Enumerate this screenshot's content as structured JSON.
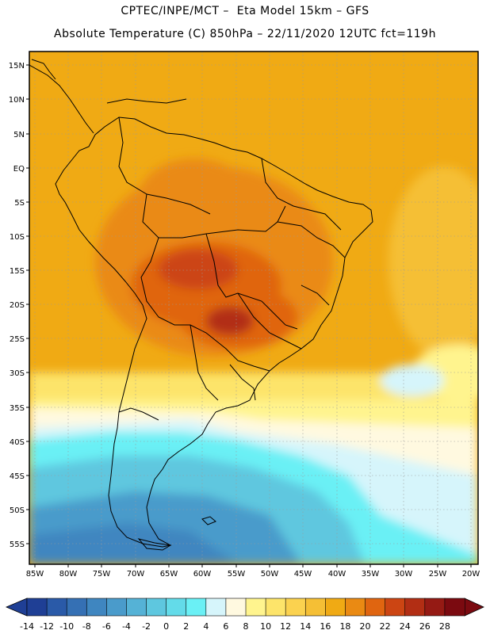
{
  "header": {
    "line1": "CPTEC/INPE/MCT –  Eta Model 15km – GFS",
    "line2": "Absolute Temperature (C) 850hPa – 22/11/2020 12UTC fct=119h"
  },
  "map": {
    "lat_labels": [
      "15N",
      "10N",
      "5N",
      "EQ",
      "5S",
      "10S",
      "15S",
      "20S",
      "25S",
      "30S",
      "35S",
      "40S",
      "45S",
      "50S",
      "55S"
    ],
    "lon_labels": [
      "85W",
      "80W",
      "75W",
      "70W",
      "65W",
      "60W",
      "55W",
      "50W",
      "45W",
      "40W",
      "35W",
      "30W",
      "25W",
      "20W"
    ],
    "lat_range": [
      17,
      -58
    ],
    "lon_range": [
      -87,
      -20
    ]
  },
  "colorbar": {
    "labels": [
      "-14",
      "-12",
      "-10",
      "-8",
      "-6",
      "-4",
      "-2",
      "0",
      "2",
      "4",
      "6",
      "8",
      "10",
      "12",
      "14",
      "16",
      "18",
      "20",
      "22",
      "24",
      "26",
      "28"
    ],
    "colors": [
      "#1f3f95",
      "#2a5aa8",
      "#3570b4",
      "#3f86c0",
      "#4a9bcb",
      "#55b2d6",
      "#5ec7df",
      "#63dbe9",
      "#6af0f5",
      "#d6f5fb",
      "#fff9e0",
      "#fff48e",
      "#fde46a",
      "#fbd24f",
      "#f5bf35",
      "#f0aa14",
      "#ea8a13",
      "#e06510",
      "#cc4513",
      "#b22e14",
      "#951a14",
      "#7b0a10"
    ]
  }
}
